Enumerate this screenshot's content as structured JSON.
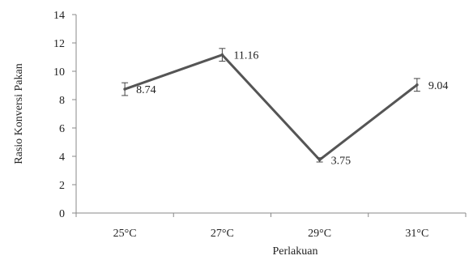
{
  "chart_data": {
    "type": "line",
    "categories": [
      "25°C",
      "27°C",
      "29°C",
      "31°C"
    ],
    "series": [
      {
        "values": [
          8.74,
          11.16,
          3.75,
          9.04
        ],
        "errors": [
          0.45,
          0.45,
          0.15,
          0.45
        ],
        "data_labels": [
          "8.74",
          "11.16",
          "3.75",
          "9.04"
        ]
      }
    ],
    "title": "",
    "xlabel": "Perlakuan",
    "ylabel": "Rasio Konversi Pakan",
    "ylim": [
      0,
      14
    ],
    "yticks": [
      "0",
      "2",
      "4",
      "6",
      "8",
      "10",
      "12",
      "14"
    ],
    "grid": false,
    "colors": {
      "line": "#555555",
      "axis": "#888888",
      "text": "#222222"
    }
  }
}
